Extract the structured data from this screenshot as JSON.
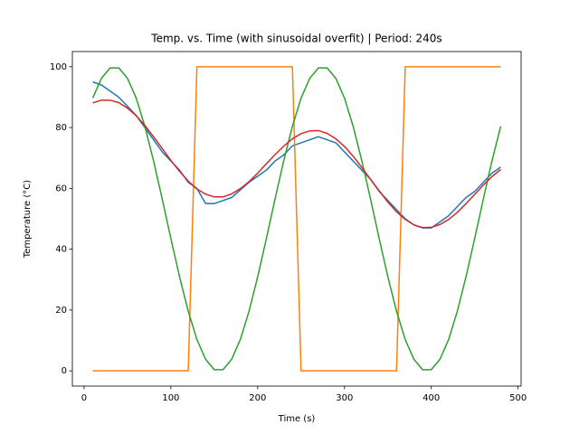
{
  "chart_data": {
    "type": "line",
    "title": "Temp. vs. Time (with sinusoidal overfit) | Period: 240s",
    "x_label": "Time (s)",
    "y_label": "Temperature (°C)",
    "x": [
      10,
      20,
      30,
      40,
      50,
      60,
      70,
      80,
      90,
      100,
      110,
      120,
      130,
      140,
      150,
      160,
      170,
      180,
      190,
      200,
      210,
      220,
      230,
      240,
      250,
      260,
      270,
      280,
      290,
      300,
      310,
      320,
      330,
      340,
      350,
      360,
      370,
      380,
      390,
      400,
      410,
      420,
      430,
      440,
      450,
      460,
      470,
      480
    ],
    "series": [
      {
        "color": "#1f77b4",
        "values": [
          95,
          94,
          92,
          90,
          87,
          84,
          80,
          76,
          72,
          69,
          66,
          62,
          60,
          55,
          55,
          56,
          57,
          59.5,
          62,
          64,
          66,
          69,
          71,
          74,
          75,
          76,
          77,
          76,
          75,
          72,
          69,
          66,
          63,
          59,
          56,
          53,
          50,
          48,
          47,
          47,
          49,
          51,
          54,
          57,
          59,
          62,
          65,
          67
        ]
      },
      {
        "color": "#ff7f0e",
        "values": [
          0,
          0,
          0,
          0,
          0,
          0,
          0,
          0,
          0,
          0,
          0,
          0,
          100,
          100,
          100,
          100,
          100,
          100,
          100,
          100,
          100,
          100,
          100,
          100,
          0,
          0,
          0,
          0,
          0,
          0,
          0,
          0,
          0,
          0,
          0,
          0,
          100,
          100,
          100,
          100,
          100,
          100,
          100,
          100,
          100,
          100,
          100,
          100
        ]
      },
      {
        "color": "#2ca02c",
        "values": [
          89.7,
          96.2,
          99.6,
          99.6,
          96.2,
          89.7,
          80.4,
          69.1,
          56.5,
          43.5,
          30.9,
          19.6,
          10.3,
          3.8,
          0.4,
          0.4,
          3.8,
          10.3,
          19.6,
          30.9,
          43.5,
          56.5,
          69.1,
          80.4,
          89.7,
          96.2,
          99.6,
          99.6,
          96.2,
          89.7,
          80.4,
          69.1,
          56.5,
          43.5,
          30.9,
          19.6,
          10.3,
          3.8,
          0.4,
          0.4,
          3.8,
          10.3,
          19.6,
          30.9,
          43.5,
          56.5,
          69.1,
          80.4
        ]
      },
      {
        "color": "#d62728",
        "values": [
          88.1,
          89.0,
          89.0,
          88.2,
          86.4,
          83.9,
          80.7,
          77.0,
          73.1,
          69.2,
          65.6,
          62.4,
          59.8,
          58.1,
          57.2,
          57.2,
          58.2,
          59.9,
          62.2,
          65.0,
          68.1,
          71.1,
          73.9,
          76.3,
          78.0,
          78.9,
          79.0,
          78.1,
          76.3,
          73.8,
          70.6,
          66.9,
          63.0,
          59.2,
          55.5,
          52.3,
          49.8,
          48.0,
          47.1,
          47.2,
          48.1,
          49.8,
          52.1,
          55.0,
          58.0,
          61.1,
          63.9,
          66.2
        ]
      }
    ],
    "xlim": [
      -13.5,
      503.5
    ],
    "xticks": [
      0,
      100,
      200,
      300,
      400,
      500
    ],
    "ylim": [
      -5,
      105
    ],
    "yticks": [
      0,
      20,
      40,
      60,
      80,
      100
    ]
  }
}
